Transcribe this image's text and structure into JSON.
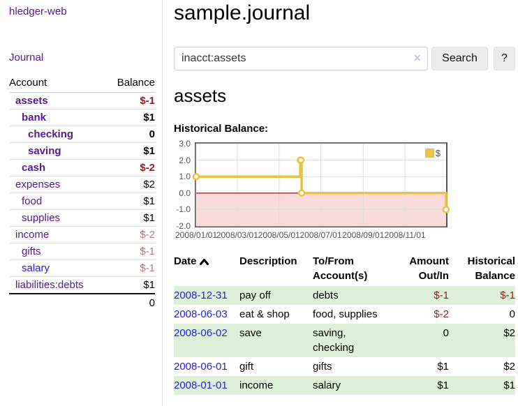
{
  "app": {
    "brand": "hledger-web",
    "nav_journal": "Journal"
  },
  "sidebar": {
    "headers": [
      "Account",
      "Balance"
    ],
    "rows": [
      {
        "account": "assets",
        "balance": "$-1",
        "depth": 1,
        "bold": true,
        "balance_negative": "strong",
        "link_color": "purple"
      },
      {
        "account": "bank",
        "balance": "$1",
        "depth": 2,
        "bold": true,
        "balance_negative": "",
        "link_color": "purple"
      },
      {
        "account": "checking",
        "balance": "0",
        "depth": 3,
        "bold": true,
        "balance_negative": "",
        "link_color": "purple"
      },
      {
        "account": "saving",
        "balance": "$1",
        "depth": 3,
        "bold": true,
        "balance_negative": "",
        "link_color": "purple"
      },
      {
        "account": "cash",
        "balance": "$-2",
        "depth": 2,
        "bold": true,
        "balance_negative": "strong",
        "link_color": "purple"
      },
      {
        "account": "expenses",
        "balance": "$2",
        "depth": 1,
        "bold": false,
        "balance_negative": "",
        "link_color": "purple"
      },
      {
        "account": "food",
        "balance": "$1",
        "depth": 2,
        "bold": false,
        "balance_negative": "",
        "link_color": "purple"
      },
      {
        "account": "supplies",
        "balance": "$1",
        "depth": 2,
        "bold": false,
        "balance_negative": "",
        "link_color": "purple"
      },
      {
        "account": "income",
        "balance": "$-2",
        "depth": 1,
        "bold": false,
        "balance_negative": "soft",
        "link_color": "purple"
      },
      {
        "account": "gifts",
        "balance": "$-1",
        "depth": 2,
        "bold": false,
        "balance_negative": "soft",
        "link_color": "purple"
      },
      {
        "account": "salary",
        "balance": "$-1",
        "depth": 2,
        "bold": false,
        "balance_negative": "soft",
        "link_color": "blue"
      },
      {
        "account": "liabilities:debts",
        "balance": "$1",
        "depth": 1,
        "bold": false,
        "balance_negative": "",
        "link_color": "purple"
      }
    ],
    "total": "0"
  },
  "header": {
    "title": "sample.journal"
  },
  "search": {
    "value": "inacct:assets",
    "clear_glyph": "×",
    "button_label": "Search",
    "help_label": "?"
  },
  "main": {
    "account_title": "assets",
    "section_label": "Historical Balance:"
  },
  "chart_data": {
    "type": "line",
    "title": "Historical Balance:",
    "legend": "$",
    "legend_position": "top-right",
    "grid": true,
    "step": true,
    "ylim": [
      -2.0,
      3.0
    ],
    "y_ticks": [
      3.0,
      2.0,
      1.0,
      0.0,
      -1.0,
      -2.0
    ],
    "x_range_days": [
      0,
      365
    ],
    "x_ticks": [
      {
        "label": "2008/01/01",
        "day": 0
      },
      {
        "label": "2008/03/01",
        "day": 60
      },
      {
        "label": "2008/05/01",
        "day": 121
      },
      {
        "label": "2008/07/01",
        "day": 182
      },
      {
        "label": "2008/09/01",
        "day": 244
      },
      {
        "label": "2008/11/01",
        "day": 305
      }
    ],
    "series": [
      {
        "name": "$",
        "color": "#edc240",
        "points": [
          {
            "date": "2008-01-01",
            "x": 0,
            "y": 1
          },
          {
            "date": "2008-06-01",
            "x": 152,
            "y": 2
          },
          {
            "date": "2008-06-02",
            "x": 153,
            "y": 2
          },
          {
            "date": "2008-06-03",
            "x": 154,
            "y": 0
          },
          {
            "date": "2008-12-31",
            "x": 365,
            "y": -1
          }
        ]
      }
    ],
    "gridline_color": "#dddddd",
    "border_color": "#545454",
    "zero_line_color": "#8b0000",
    "negative_region_color": "#fbdada"
  },
  "register": {
    "headers": {
      "date": "Date",
      "description": "Description",
      "tofrom": "To/From Account(s)",
      "amount": "Amount Out/In",
      "balance": "Historical Balance"
    },
    "rows": [
      {
        "date": "2008-12-31",
        "description": "pay off",
        "tofrom": "debts",
        "amount": "$-1",
        "amount_negative": true,
        "balance": "$-1",
        "balance_negative": true,
        "shaded": true
      },
      {
        "date": "2008-06-03",
        "description": "eat & shop",
        "tofrom": "food, supplies",
        "amount": "$-2",
        "amount_negative": true,
        "balance": "0",
        "balance_negative": false,
        "shaded": false
      },
      {
        "date": "2008-06-02",
        "description": "save",
        "tofrom": "saving, checking",
        "amount": "0",
        "amount_negative": false,
        "balance": "$2",
        "balance_negative": false,
        "shaded": true
      },
      {
        "date": "2008-06-01",
        "description": "gift",
        "tofrom": "gifts",
        "amount": "$1",
        "amount_negative": false,
        "balance": "$2",
        "balance_negative": false,
        "shaded": false
      },
      {
        "date": "2008-01-01",
        "description": "income",
        "tofrom": "salary",
        "amount": "$1",
        "amount_negative": false,
        "balance": "$1",
        "balance_negative": false,
        "shaded": true
      }
    ]
  },
  "colors": {
    "link_purple": "#551a8b",
    "link_blue": "#2323cc",
    "negative_strong": "#8f1d1d",
    "negative_soft": "#bb7777",
    "row_shade_green": "#dff0d8",
    "series_gold": "#edc240"
  }
}
